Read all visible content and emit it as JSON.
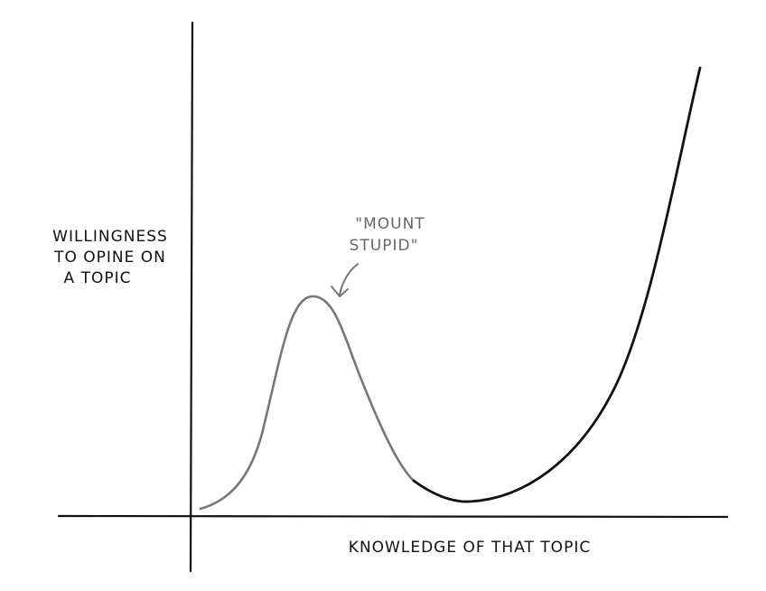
{
  "y_axis_label": {
    "lines": [
      "WILLINGNESS",
      "TO OPINE ON",
      "A TOPIC"
    ]
  },
  "annotation": {
    "lines": [
      "\"MOUNT",
      "STUPID\""
    ]
  },
  "x_axis_label": "KNOWLEDGE OF THAT TOPIC"
}
